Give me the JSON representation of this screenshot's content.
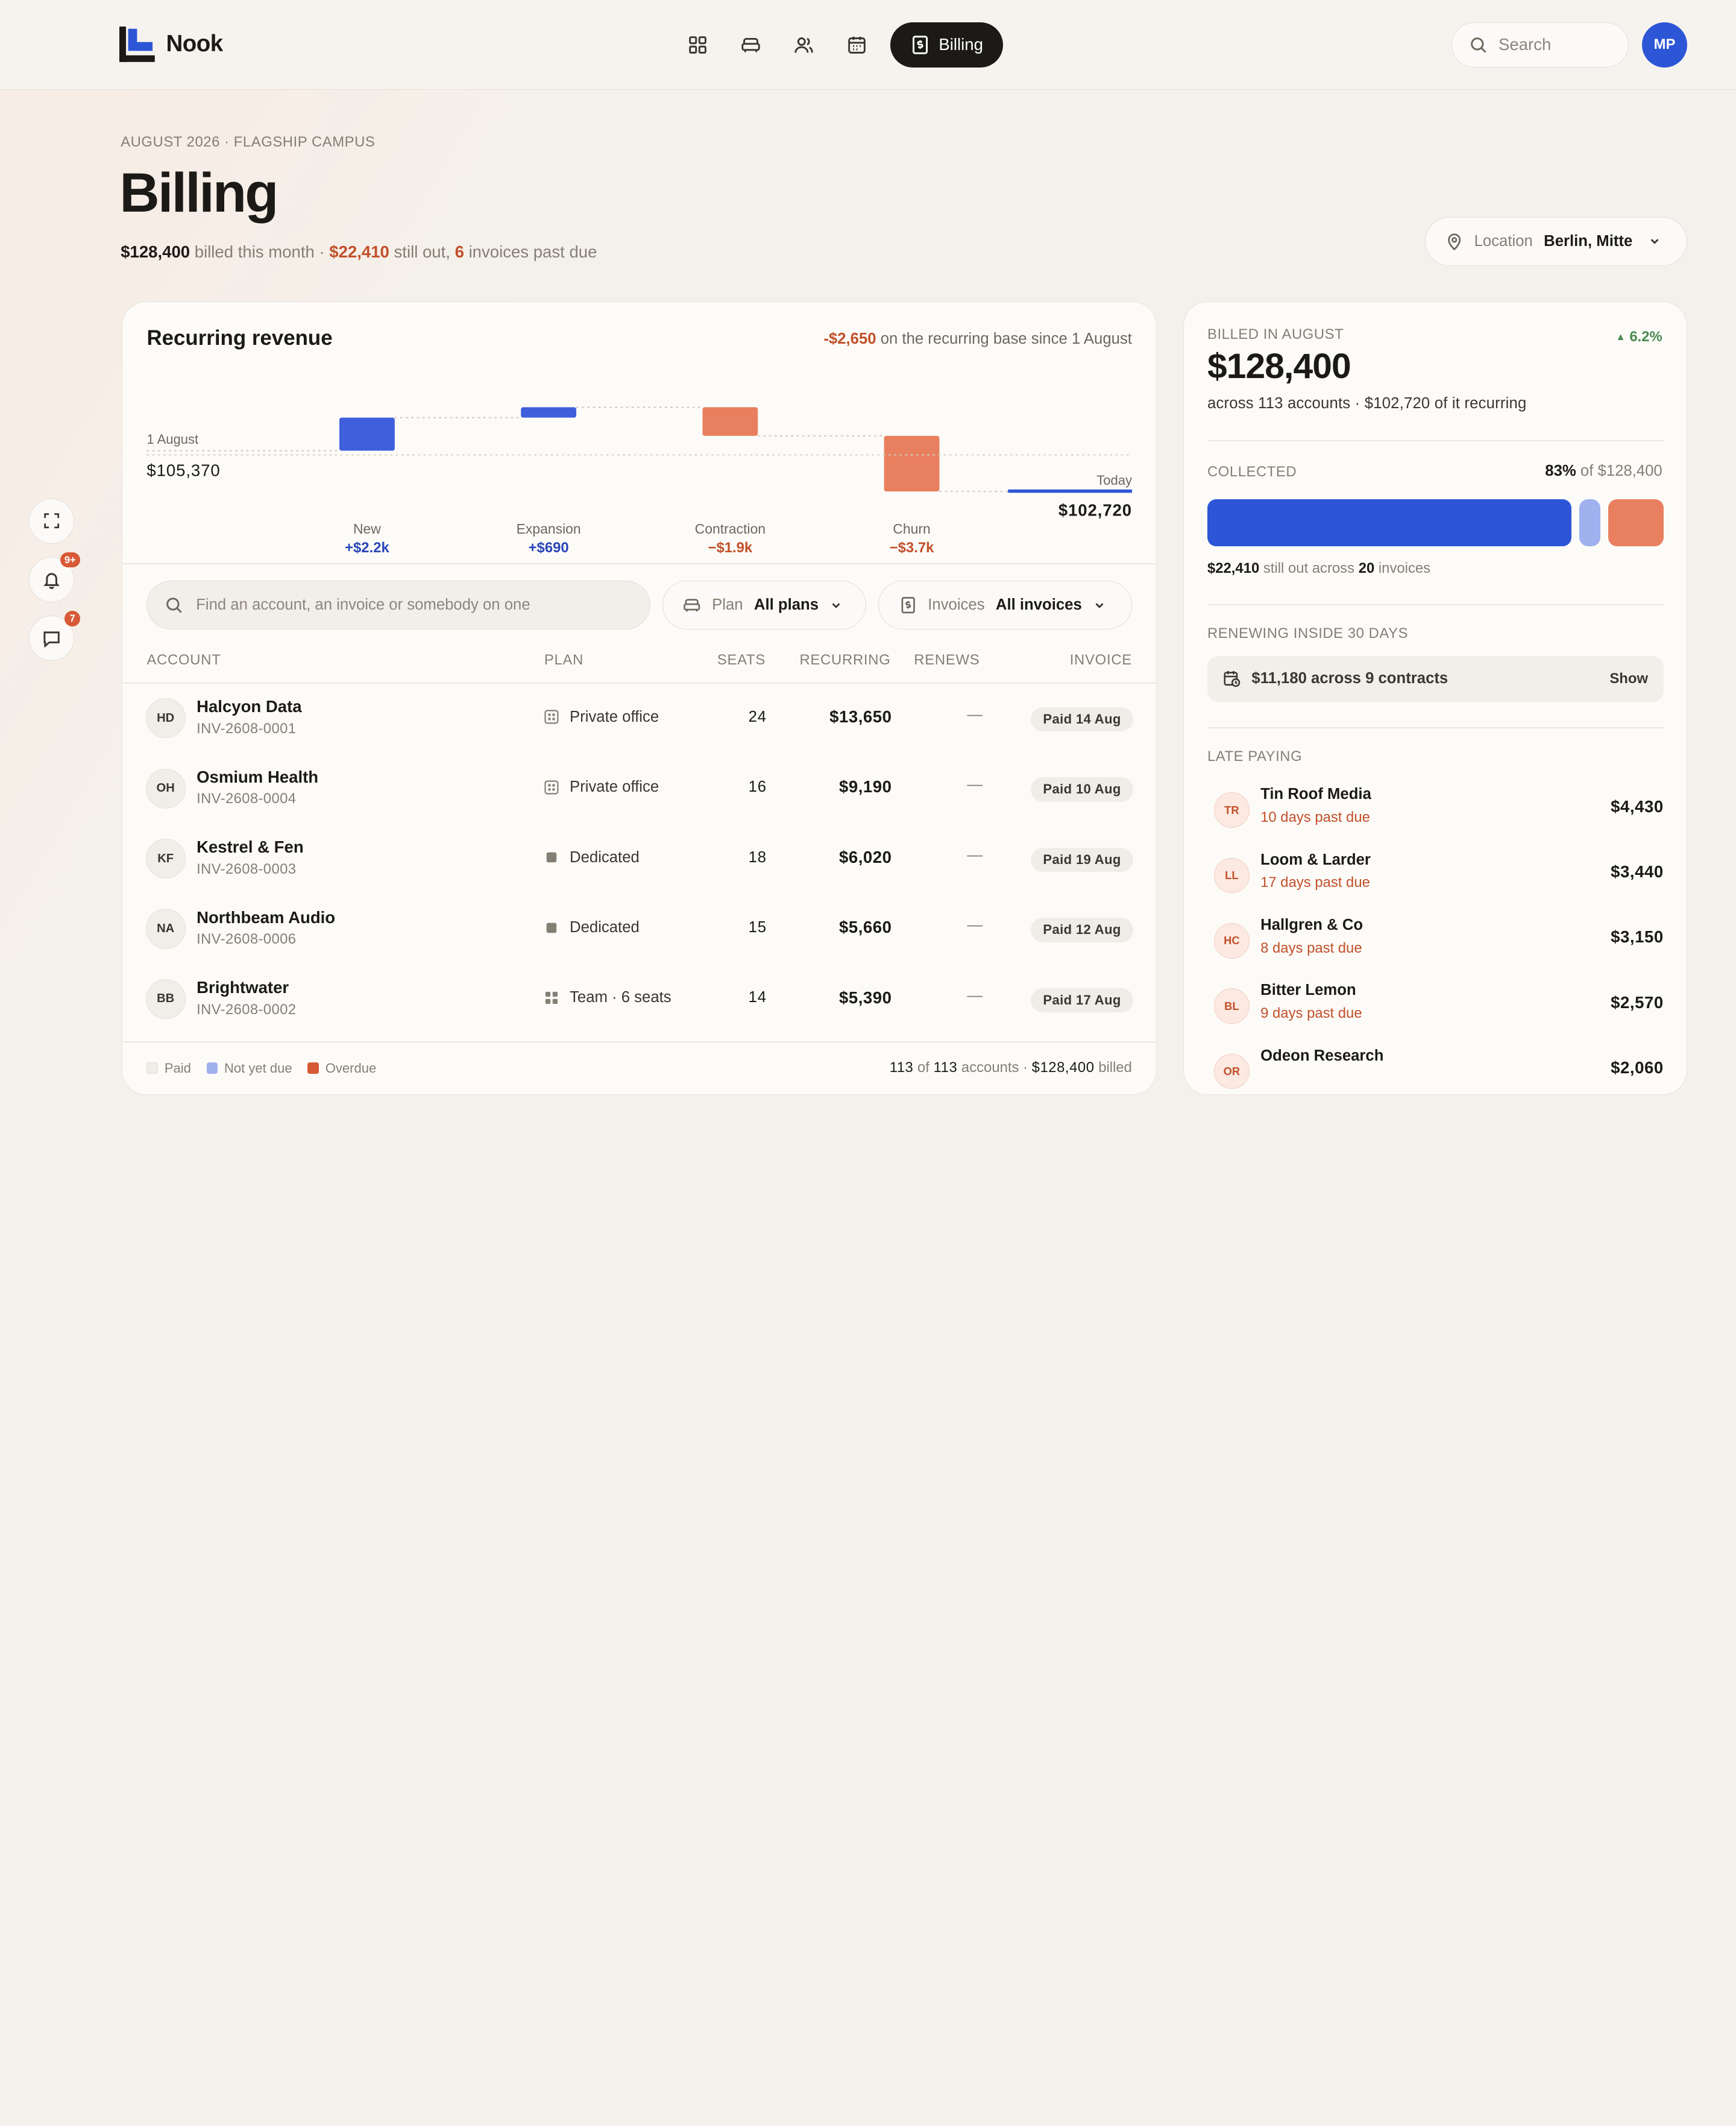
{
  "app": {
    "name": "Nook",
    "user_initials": "MP"
  },
  "nav": {
    "active_label": "Billing",
    "search_placeholder": "Search"
  },
  "header": {
    "eyebrow": "AUGUST 2026 · FLAGSHIP CAMPUS",
    "title": "Billing",
    "billed": "$128,400",
    "billed_text": "billed this month ·",
    "still_out": "$22,410",
    "still_out_text": "still out,",
    "past_due_count": "6",
    "past_due_text": "invoices past due"
  },
  "location": {
    "label": "Location",
    "value": "Berlin, Mitte"
  },
  "rail": {
    "notifications_badge": "9+",
    "messages_badge": "7"
  },
  "revenue": {
    "title": "Recurring revenue",
    "note_value": "-$2,650",
    "note_text": "on the recurring base since 1 August",
    "start_label": "1 August",
    "start_value": "$105,370",
    "end_label": "Today",
    "end_value": "$102,720"
  },
  "chart_data": {
    "type": "bar",
    "subtype": "waterfall",
    "title": "Recurring revenue",
    "start": {
      "label": "1 August",
      "value": 105370
    },
    "end": {
      "label": "Today",
      "value": 102720
    },
    "categories": [
      "New",
      "Expansion",
      "Contraction",
      "Churn"
    ],
    "values": [
      2200,
      690,
      -1900,
      -3700
    ],
    "value_labels": [
      "+$2.2k",
      "+$690",
      "−$1.9k",
      "−$3.7k"
    ],
    "colors": [
      "#3f5fdc",
      "#3f5fdc",
      "#e8805f",
      "#e8805f"
    ]
  },
  "filters": {
    "search_placeholder": "Find an account, an invoice or somebody on one",
    "plan_label": "Plan",
    "plan_value": "All plans",
    "invoices_label": "Invoices",
    "invoices_value": "All invoices"
  },
  "table": {
    "headers": {
      "account": "ACCOUNT",
      "plan": "PLAN",
      "seats": "SEATS",
      "recurring": "RECURRING",
      "renews": "RENEWS",
      "invoice": "INVOICE"
    },
    "rows": [
      {
        "initials": "HD",
        "name": "Halcyon Data",
        "invoice_id": "INV-2608-0001",
        "plan": "Private office",
        "plan_icon": "private-office-icon",
        "seats": "24",
        "recurring": "$13,650",
        "renews": "—",
        "status": "Paid 14 Aug"
      },
      {
        "initials": "OH",
        "name": "Osmium Health",
        "invoice_id": "INV-2608-0004",
        "plan": "Private office",
        "plan_icon": "private-office-icon",
        "seats": "16",
        "recurring": "$9,190",
        "renews": "—",
        "status": "Paid 10 Aug"
      },
      {
        "initials": "KF",
        "name": "Kestrel & Fen",
        "invoice_id": "INV-2608-0003",
        "plan": "Dedicated",
        "plan_icon": "dedicated-icon",
        "seats": "18",
        "recurring": "$6,020",
        "renews": "—",
        "status": "Paid 19 Aug"
      },
      {
        "initials": "NA",
        "name": "Northbeam Audio",
        "invoice_id": "INV-2608-0006",
        "plan": "Dedicated",
        "plan_icon": "dedicated-icon",
        "seats": "15",
        "recurring": "$5,660",
        "renews": "—",
        "status": "Paid 12 Aug"
      },
      {
        "initials": "BB",
        "name": "Brightwater",
        "invoice_id": "INV-2608-0002",
        "plan": "Team · 6 seats",
        "plan_icon": "team-icon",
        "seats": "14",
        "recurring": "$5,390",
        "renews": "—",
        "status": "Paid 17 Aug"
      }
    ]
  },
  "legend": {
    "paid": "Paid",
    "not_yet_due": "Not yet due",
    "overdue": "Overdue"
  },
  "footer": {
    "shown": "113",
    "of_text": "of",
    "total": "113",
    "accounts_text": "accounts ·",
    "billed": "$128,400",
    "billed_text": "billed"
  },
  "summary": {
    "billed_label": "BILLED IN AUGUST",
    "delta": "6.2%",
    "billed_value": "$128,400",
    "accounts_text": "across",
    "accounts_count": "113",
    "accounts_suffix": "accounts ·",
    "recurring_value": "$102,720",
    "recurring_suffix": "of it recurring",
    "collected_label": "COLLECTED",
    "collected_pct": "83%",
    "collected_of": "of $128,400",
    "collected_fraction": 0.83,
    "still_out_value": "$22,410",
    "still_out_text": "still out across",
    "still_out_count": "20",
    "still_out_suffix": "invoices",
    "renewing_label": "RENEWING INSIDE 30 DAYS",
    "renewing_text": "$11,180 across 9 contracts",
    "renewing_action": "Show",
    "late_label": "LATE PAYING",
    "late": [
      {
        "initials": "TR",
        "name": "Tin Roof Media",
        "due": "10 days past due",
        "amount": "$4,430"
      },
      {
        "initials": "LL",
        "name": "Loom & Larder",
        "due": "17 days past due",
        "amount": "$3,440"
      },
      {
        "initials": "HC",
        "name": "Hallgren & Co",
        "due": "8 days past due",
        "amount": "$3,150"
      },
      {
        "initials": "BL",
        "name": "Bitter Lemon",
        "due": "9 days past due",
        "amount": "$2,570"
      },
      {
        "initials": "OR",
        "name": "Odeon Research",
        "due": "",
        "amount": "$2,060"
      }
    ]
  },
  "colors": {
    "accent": "#2d56d6",
    "negative": "#c2502a",
    "overdue": "#e8805f",
    "not_yet_due": "#9fb1ef",
    "dark": "#1c1a17"
  }
}
